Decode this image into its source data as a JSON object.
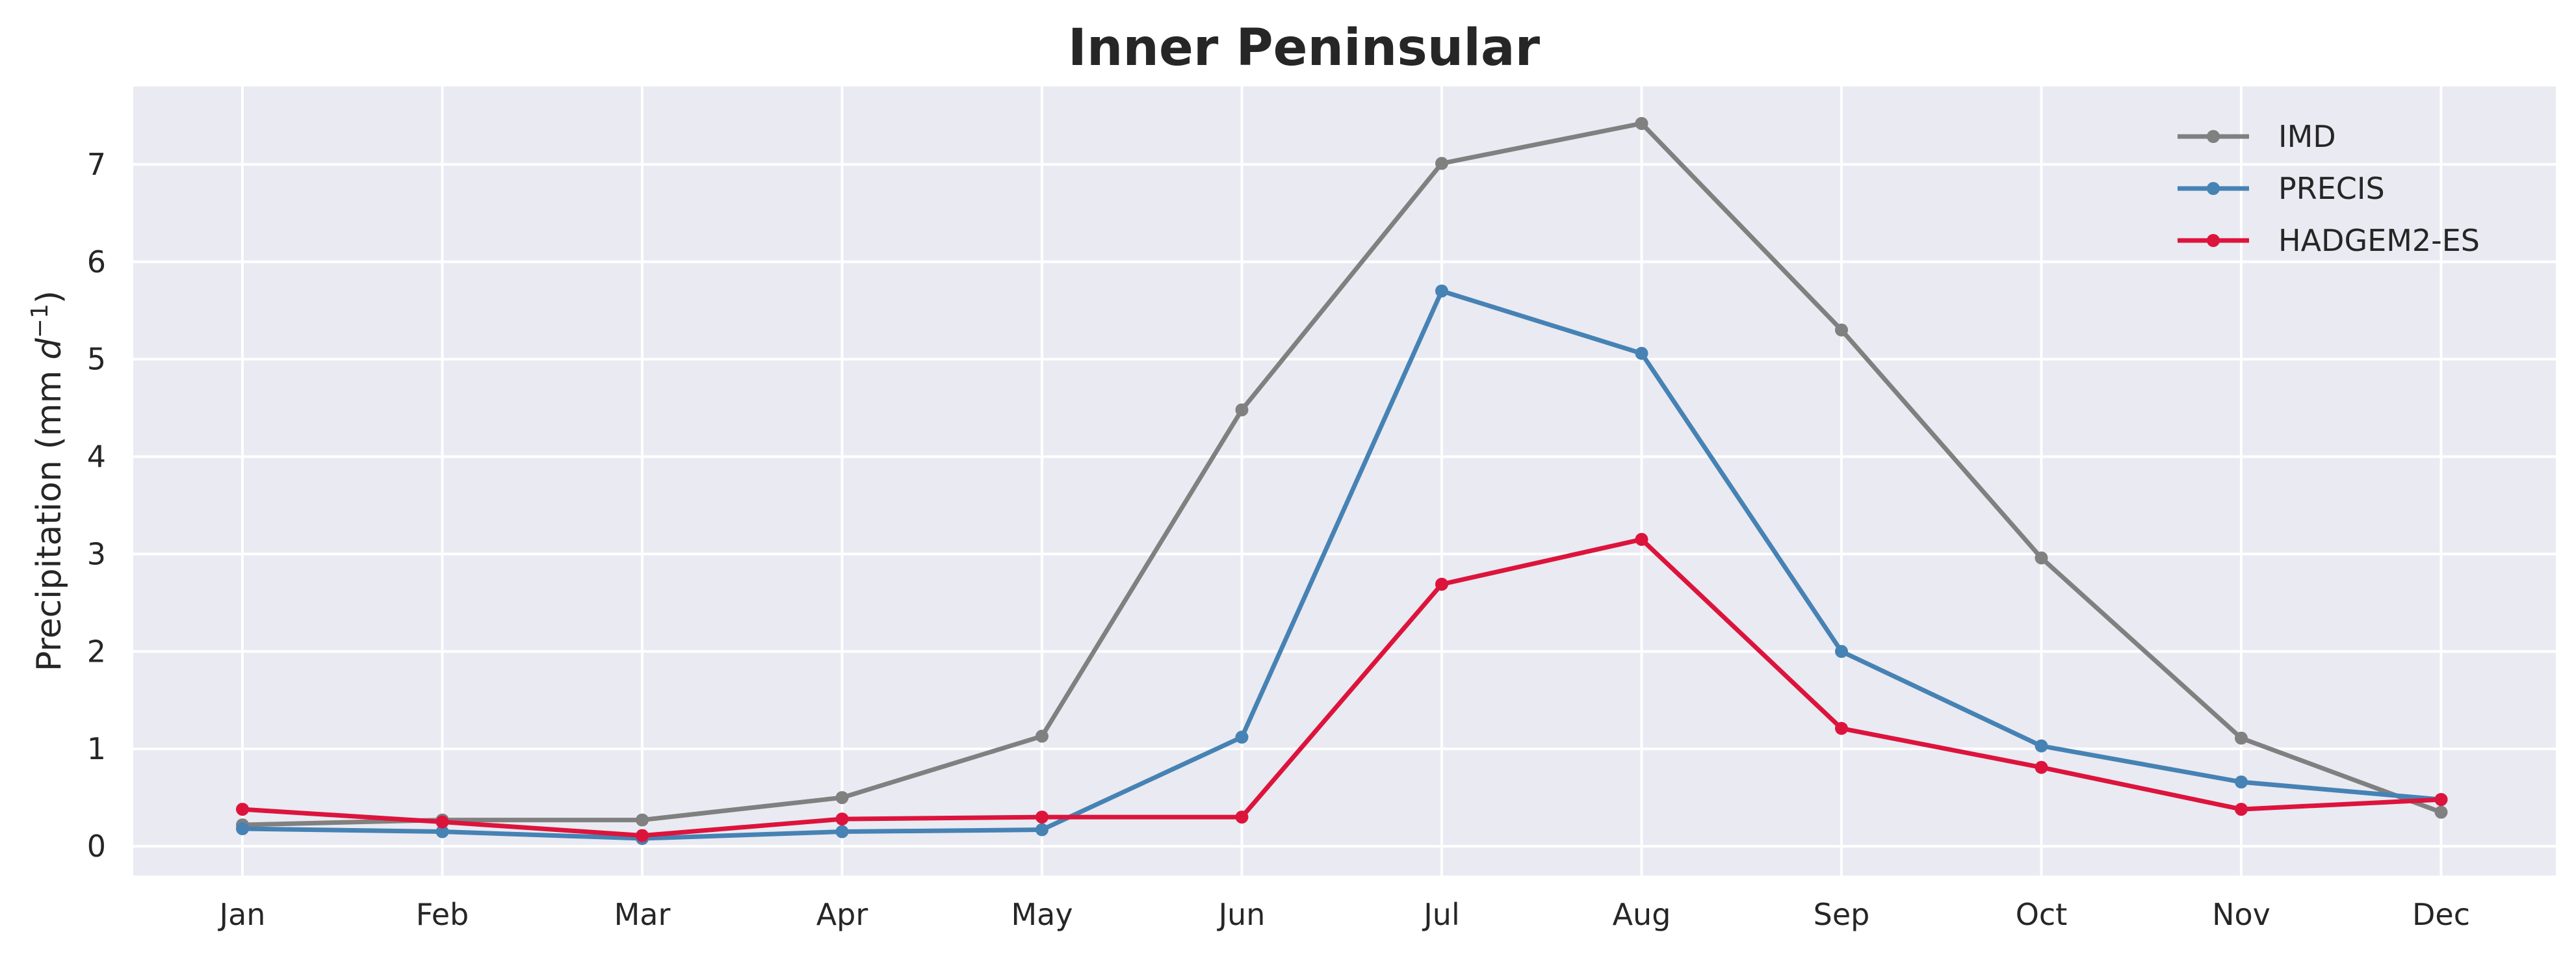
{
  "chart_data": {
    "type": "line",
    "title": "Inner Peninsular",
    "xlabel": "",
    "ylabel_main": "Precipitation (mm ",
    "ylabel_unit_var": "d",
    "ylabel_unit_exp": "−1",
    "ylabel_close": ")",
    "categories": [
      "Jan",
      "Feb",
      "Mar",
      "Apr",
      "May",
      "Jun",
      "Jul",
      "Aug",
      "Sep",
      "Oct",
      "Nov",
      "Dec"
    ],
    "ylim": [
      -0.3,
      7.8
    ],
    "yticks": [
      0,
      1,
      2,
      3,
      4,
      5,
      6,
      7
    ],
    "grid": true,
    "legend_position": "top-right",
    "background": "#eaeaf2",
    "series": [
      {
        "name": "IMD",
        "color": "#808080",
        "values": [
          0.22,
          0.27,
          0.27,
          0.5,
          1.13,
          4.48,
          7.01,
          7.42,
          5.3,
          2.96,
          1.11,
          0.35
        ]
      },
      {
        "name": "PRECIS",
        "color": "#4682b4",
        "values": [
          0.18,
          0.15,
          0.08,
          0.15,
          0.17,
          1.12,
          5.7,
          5.06,
          2.0,
          1.03,
          0.66,
          0.48
        ]
      },
      {
        "name": "HADGEM2-ES",
        "color": "#dc143c",
        "values": [
          0.38,
          0.25,
          0.11,
          0.28,
          0.3,
          0.3,
          2.69,
          3.15,
          1.21,
          0.81,
          0.38,
          0.48
        ]
      }
    ]
  }
}
